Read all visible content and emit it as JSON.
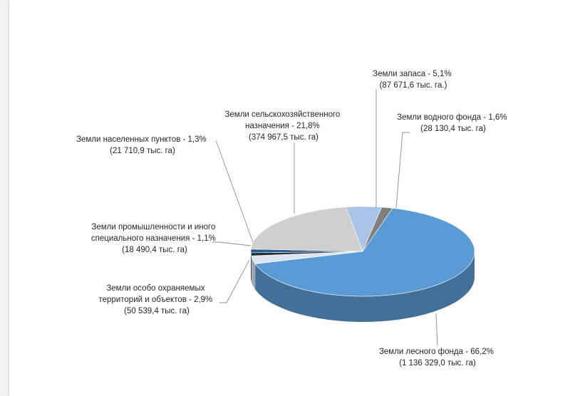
{
  "chart_data": {
    "type": "pie",
    "style": "3d",
    "slices": [
      {
        "category": "Земли лесного фонда",
        "percent": 66.2,
        "area": "1 136 329,0 тыс. га",
        "line1": "Земли лесного фонда - 66,2%",
        "line2": "(1 136 329,0 тыс. га)",
        "color": "#5b9bd5"
      },
      {
        "category": "Земли особо охраняемых территорий и объектов",
        "percent": 2.9,
        "area": "50 539,4 тыс. га",
        "line1": "Земли особо охраняемых",
        "line2": "территорий и объектов - 2,9%",
        "line3": "(50 539,4 тыс. га)",
        "color": "#dce6f2"
      },
      {
        "category": "Земли промышленности и иного специального назначения",
        "percent": 1.1,
        "area": "18 490,4 тыс. га",
        "line1": "Земли промышленности и иного",
        "line2": "специального назначения - 1,1%",
        "line3": "(18 490,4 тыс. га)",
        "color": "#1f2d3d"
      },
      {
        "category": "Земли населенных пунктов",
        "percent": 1.3,
        "area": "21 710,9 тыс. га",
        "line1": "Земли населенных пунктов - 1,3%",
        "line2": "(21 710,9 тыс. га)",
        "color": "#2e5d8a"
      },
      {
        "category": "Земли сельскохозяйственного назначения",
        "percent": 21.8,
        "area": "374 967,5 тыс. га",
        "line1": "Земли сельскохозяйственного",
        "line2": "назначения - 21,8%",
        "line3": "(374 967,5 тыс. га)",
        "color": "#d0cece"
      },
      {
        "category": "Земли запаса",
        "percent": 5.1,
        "area": "87 671,6 тыс. га",
        "line1": "Земли запаса - 5,1%",
        "line2": "(87 671,6 тыс. га.)",
        "color": "#aac3e6"
      },
      {
        "category": "Земли водного фонда",
        "percent": 1.6,
        "area": "28 130,4 тыс. га",
        "line1": "Земли водного фонда - 1,6%",
        "line2": "(28 130,4 тыс. га)",
        "color": "#7f7f7f"
      }
    ]
  }
}
